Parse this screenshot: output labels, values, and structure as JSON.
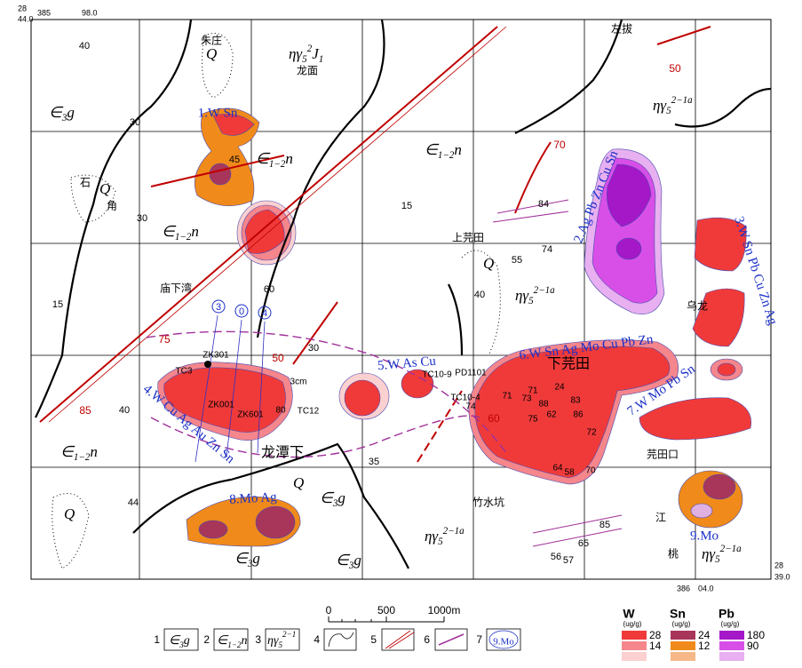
{
  "corners": [
    "28",
    "44.0",
    "385",
    "98.0",
    "28",
    "39.0",
    "386",
    "04.0"
  ],
  "places": [
    "朱庄",
    "龙面",
    "左拔",
    "上芫田",
    "庙下湾",
    "乌龙",
    "竹水坑",
    "芫田口",
    "江",
    "桃",
    "石",
    "角"
  ],
  "big_places": [
    "下芫田",
    "龙潭下"
  ],
  "units": [
    {
      "parts": [
        {
          "t": "Q",
          "s": "n"
        }
      ]
    },
    {
      "parts": [
        {
          "t": "ηγ",
          "s": "n"
        },
        {
          "t": "5",
          "s": "sub"
        },
        {
          "t": "2",
          "s": "sup"
        },
        {
          "t": "J",
          "s": "n"
        },
        {
          "t": "1",
          "s": "sub"
        }
      ]
    },
    {
      "parts": [
        {
          "t": "∈",
          "s": "n"
        },
        {
          "t": "3",
          "s": "sub"
        },
        {
          "t": "g",
          "s": "n"
        }
      ]
    },
    {
      "parts": [
        {
          "t": "ηγ",
          "s": "n"
        },
        {
          "t": "5",
          "s": "sub"
        },
        {
          "t": "2−1a",
          "s": "sup"
        }
      ]
    },
    {
      "parts": [
        {
          "t": "∈",
          "s": "n"
        },
        {
          "t": "1−2",
          "s": "sub"
        },
        {
          "t": "n",
          "s": "n"
        }
      ]
    },
    {
      "parts": [
        {
          "t": "∈",
          "s": "n"
        },
        {
          "t": "1−2",
          "s": "sub"
        },
        {
          "t": "n",
          "s": "n"
        }
      ]
    },
    {
      "parts": [
        {
          "t": "Q",
          "s": "n"
        }
      ]
    },
    {
      "parts": [
        {
          "t": "∈",
          "s": "n"
        },
        {
          "t": "1−2",
          "s": "sub"
        },
        {
          "t": "n",
          "s": "n"
        }
      ]
    },
    {
      "parts": [
        {
          "t": "Q",
          "s": "n"
        }
      ]
    },
    {
      "parts": [
        {
          "t": "ηγ",
          "s": "n"
        },
        {
          "t": "5",
          "s": "sub"
        },
        {
          "t": "2−1a",
          "s": "sup"
        }
      ]
    },
    {
      "parts": [
        {
          "t": "∈",
          "s": "n"
        },
        {
          "t": "1−2",
          "s": "sub"
        },
        {
          "t": "n",
          "s": "n"
        }
      ]
    },
    {
      "parts": [
        {
          "t": "Q",
          "s": "n"
        }
      ]
    },
    {
      "parts": [
        {
          "t": "∈",
          "s": "n"
        },
        {
          "t": "3",
          "s": "sub"
        },
        {
          "t": "g",
          "s": "n"
        }
      ]
    },
    {
      "parts": [
        {
          "t": "∈",
          "s": "n"
        },
        {
          "t": "3",
          "s": "sub"
        },
        {
          "t": "g",
          "s": "n"
        }
      ]
    },
    {
      "parts": [
        {
          "t": "∈",
          "s": "n"
        },
        {
          "t": "3",
          "s": "sub"
        },
        {
          "t": "g",
          "s": "n"
        }
      ]
    },
    {
      "parts": [
        {
          "t": "Q",
          "s": "n"
        }
      ]
    },
    {
      "parts": [
        {
          "t": "ηγ",
          "s": "n"
        },
        {
          "t": "5",
          "s": "sub"
        },
        {
          "t": "2−1a",
          "s": "sup"
        }
      ]
    },
    {
      "parts": [
        {
          "t": "ηγ",
          "s": "n"
        },
        {
          "t": "5",
          "s": "sub"
        },
        {
          "t": "2−1a",
          "s": "sup"
        }
      ]
    }
  ],
  "anomalies": [
    "1.W Sn",
    "2.Ag Pb Zn Cu Sn",
    "3.W Sn Pb Cu Zn Ag",
    "4.W Cu Ag Au Zn Sn",
    "5.W As Cu",
    "6.W Sn Ag Mo Cu Pb Zn",
    "7.W Mo Pb Sn",
    "8.Mo Ag",
    "9.Mo"
  ],
  "dips": [
    40,
    30,
    45,
    30,
    15,
    15,
    60,
    30,
    40,
    35,
    44,
    84,
    74,
    55,
    40,
    85,
    65,
    56,
    57
  ],
  "red_numbers": [
    50,
    70,
    75,
    85,
    50,
    60
  ],
  "samples": [
    71,
    24,
    74,
    71,
    73,
    88,
    83,
    62,
    86,
    75,
    72,
    64,
    58,
    70,
    80
  ],
  "holes": [
    "ZK301",
    "TC3",
    "ZK001",
    "ZK601",
    "TC12",
    "3cm",
    "TC10-9",
    "PD1101",
    "TC10-4"
  ],
  "circled": [
    "3",
    "0",
    "4"
  ],
  "scale": {
    "labels": [
      "0",
      "500",
      "1000m"
    ]
  },
  "legend": {
    "numbers": [
      "1",
      "2",
      "3",
      "4",
      "5",
      "6",
      "7"
    ],
    "units": [
      {
        "parts": [
          {
            "t": "∈",
            "s": "n"
          },
          {
            "t": "3",
            "s": "sub"
          },
          {
            "t": "g",
            "s": "n"
          }
        ]
      },
      {
        "parts": [
          {
            "t": "∈",
            "s": "n"
          },
          {
            "t": "1−2",
            "s": "sub"
          },
          {
            "t": "n",
            "s": "n"
          }
        ]
      },
      {
        "parts": [
          {
            "t": "ηγ",
            "s": "n"
          },
          {
            "t": "5",
            "s": "sub"
          },
          {
            "t": "2−1",
            "s": "sup"
          }
        ]
      }
    ],
    "anomaly_sample": "9.Mo",
    "elements": [
      {
        "name": "W",
        "unit": "(ug/g)",
        "levels": [
          "28",
          "14"
        ]
      },
      {
        "name": "Sn",
        "unit": "(ug/g)",
        "levels": [
          "24",
          "12"
        ]
      },
      {
        "name": "Pb",
        "unit": "(ug/g)",
        "levels": [
          "180",
          "90"
        ]
      }
    ]
  }
}
